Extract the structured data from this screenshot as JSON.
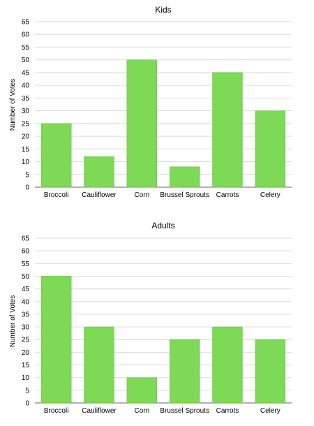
{
  "chart_data": [
    {
      "type": "bar",
      "title": "Kids",
      "ylabel": "Number of Votes",
      "xlabel": "",
      "categories": [
        "Broccoli",
        "Cauliflower",
        "Corn",
        "Brussel Sprouts",
        "Carrots",
        "Celery"
      ],
      "values": [
        25,
        12,
        50,
        8,
        45,
        30
      ],
      "ylim": [
        0,
        65
      ],
      "yticks": [
        "0",
        "5",
        "10",
        "15",
        "20",
        "25",
        "30",
        "35",
        "40",
        "45",
        "50",
        "55",
        "60",
        "65"
      ],
      "grid": true,
      "legend": "none",
      "bar_color": "#7ed957"
    },
    {
      "type": "bar",
      "title": "Adults",
      "ylabel": "Number of Votes",
      "xlabel": "",
      "categories": [
        "Broccoli",
        "Cauliflower",
        "Corn",
        "Brussel Sprouts",
        "Carrots",
        "Celery"
      ],
      "values": [
        50,
        30,
        10,
        25,
        30,
        25
      ],
      "ylim": [
        0,
        65
      ],
      "yticks": [
        "0",
        "5",
        "10",
        "15",
        "20",
        "25",
        "30",
        "35",
        "40",
        "45",
        "50",
        "55",
        "60",
        "65"
      ],
      "grid": true,
      "legend": "none",
      "bar_color": "#7ed957"
    }
  ]
}
